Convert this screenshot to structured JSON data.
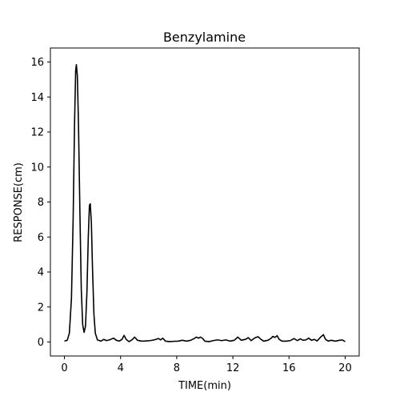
{
  "chart_data": {
    "type": "line",
    "title": "Benzylamine",
    "xlabel": "TIME(min)",
    "ylabel": "RESPONSE(cm)",
    "xlim": [
      -1.0,
      21.0
    ],
    "ylim": [
      -0.8,
      16.8
    ],
    "xticks": [
      0,
      4,
      8,
      12,
      16,
      20
    ],
    "yticks": [
      0,
      2,
      4,
      6,
      8,
      10,
      12,
      14,
      16
    ],
    "grid": false,
    "line_color": "#000000",
    "series": [
      {
        "points": [
          [
            0.0,
            0.05
          ],
          [
            0.2,
            0.1
          ],
          [
            0.35,
            0.5
          ],
          [
            0.5,
            2.5
          ],
          [
            0.62,
            7.0
          ],
          [
            0.72,
            12.5
          ],
          [
            0.8,
            15.5
          ],
          [
            0.85,
            15.85
          ],
          [
            0.92,
            15.2
          ],
          [
            1.0,
            12.5
          ],
          [
            1.1,
            7.5
          ],
          [
            1.2,
            3.0
          ],
          [
            1.3,
            1.0
          ],
          [
            1.4,
            0.55
          ],
          [
            1.5,
            0.9
          ],
          [
            1.6,
            2.8
          ],
          [
            1.7,
            6.0
          ],
          [
            1.78,
            7.8
          ],
          [
            1.84,
            7.9
          ],
          [
            1.92,
            6.8
          ],
          [
            2.0,
            4.2
          ],
          [
            2.1,
            1.6
          ],
          [
            2.2,
            0.5
          ],
          [
            2.35,
            0.12
          ],
          [
            2.6,
            0.05
          ],
          [
            2.8,
            0.15
          ],
          [
            3.0,
            0.08
          ],
          [
            3.2,
            0.12
          ],
          [
            3.5,
            0.22
          ],
          [
            3.7,
            0.1
          ],
          [
            3.9,
            0.05
          ],
          [
            4.1,
            0.15
          ],
          [
            4.25,
            0.38
          ],
          [
            4.4,
            0.15
          ],
          [
            4.6,
            0.02
          ],
          [
            4.8,
            0.12
          ],
          [
            5.0,
            0.28
          ],
          [
            5.2,
            0.1
          ],
          [
            5.5,
            0.05
          ],
          [
            5.8,
            0.06
          ],
          [
            6.1,
            0.08
          ],
          [
            6.4,
            0.12
          ],
          [
            6.7,
            0.2
          ],
          [
            6.85,
            0.12
          ],
          [
            7.0,
            0.22
          ],
          [
            7.2,
            0.05
          ],
          [
            7.5,
            0.02
          ],
          [
            7.8,
            0.04
          ],
          [
            8.1,
            0.05
          ],
          [
            8.4,
            0.1
          ],
          [
            8.7,
            0.05
          ],
          [
            9.0,
            0.1
          ],
          [
            9.2,
            0.18
          ],
          [
            9.4,
            0.28
          ],
          [
            9.55,
            0.22
          ],
          [
            9.7,
            0.28
          ],
          [
            9.85,
            0.2
          ],
          [
            10.0,
            0.05
          ],
          [
            10.3,
            0.02
          ],
          [
            10.6,
            0.08
          ],
          [
            10.9,
            0.12
          ],
          [
            11.2,
            0.08
          ],
          [
            11.5,
            0.12
          ],
          [
            11.8,
            0.05
          ],
          [
            12.1,
            0.1
          ],
          [
            12.35,
            0.28
          ],
          [
            12.6,
            0.1
          ],
          [
            12.9,
            0.15
          ],
          [
            13.1,
            0.25
          ],
          [
            13.3,
            0.08
          ],
          [
            13.6,
            0.25
          ],
          [
            13.8,
            0.3
          ],
          [
            14.0,
            0.15
          ],
          [
            14.2,
            0.05
          ],
          [
            14.5,
            0.1
          ],
          [
            14.7,
            0.2
          ],
          [
            14.85,
            0.32
          ],
          [
            15.0,
            0.26
          ],
          [
            15.15,
            0.36
          ],
          [
            15.3,
            0.15
          ],
          [
            15.5,
            0.05
          ],
          [
            15.8,
            0.05
          ],
          [
            16.1,
            0.08
          ],
          [
            16.35,
            0.2
          ],
          [
            16.6,
            0.08
          ],
          [
            16.8,
            0.18
          ],
          [
            17.0,
            0.1
          ],
          [
            17.2,
            0.12
          ],
          [
            17.4,
            0.22
          ],
          [
            17.6,
            0.1
          ],
          [
            17.8,
            0.15
          ],
          [
            18.0,
            0.06
          ],
          [
            18.25,
            0.28
          ],
          [
            18.45,
            0.42
          ],
          [
            18.6,
            0.15
          ],
          [
            18.8,
            0.05
          ],
          [
            19.0,
            0.1
          ],
          [
            19.3,
            0.05
          ],
          [
            19.6,
            0.1
          ],
          [
            19.8,
            0.12
          ],
          [
            20.0,
            0.02
          ]
        ]
      }
    ]
  }
}
